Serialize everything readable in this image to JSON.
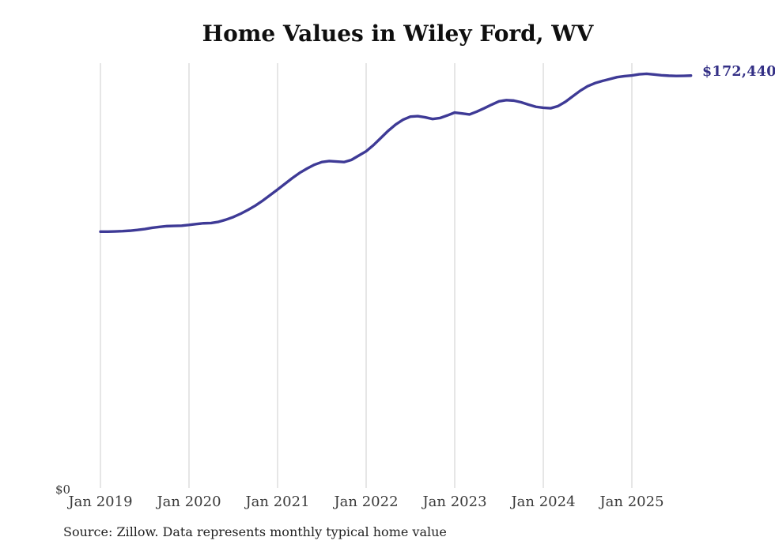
{
  "chart_data": {
    "type": "line",
    "title": "Home Values in Wiley Ford, WV",
    "x_tick_labels": [
      "Jan 2019",
      "Jan 2020",
      "Jan 2021",
      "Jan 2022",
      "Jan 2023",
      "Jan 2024",
      "Jan 2025"
    ],
    "y_tick_labels": [
      "$0"
    ],
    "end_value_label": "$172,440",
    "end_value": 172440,
    "x_start_month": "2019-01",
    "x_interval_months": 1,
    "ylim": [
      0,
      175000
    ],
    "grid": "vertical-yearly",
    "legend": "none",
    "monthly_values": [
      107200,
      107200,
      107300,
      107400,
      107600,
      107900,
      108300,
      108800,
      109200,
      109500,
      109600,
      109700,
      110000,
      110400,
      110700,
      110800,
      111300,
      112200,
      113300,
      114700,
      116300,
      118100,
      120200,
      122500,
      124800,
      127200,
      129600,
      131800,
      133600,
      135200,
      136300,
      136700,
      136500,
      136300,
      137200,
      139000,
      140800,
      143400,
      146400,
      149400,
      152000,
      154000,
      155300,
      155500,
      155000,
      154300,
      154700,
      155800,
      157000,
      156600,
      156200,
      157400,
      158800,
      160300,
      161700,
      162200,
      162000,
      161300,
      160300,
      159400,
      159000,
      158800,
      159700,
      161500,
      163800,
      166100,
      168000,
      169300,
      170200,
      171000,
      171800,
      172200,
      172500,
      173000,
      173200,
      172900,
      172600,
      172400,
      172300,
      172350,
      172440
    ],
    "source": "Source: Zillow. Data represents monthly typical home value",
    "line_color": "#3e3a96",
    "end_label_color": "#343086",
    "grid_color": "#cccccc",
    "axis_label_color": "#3a3a3a",
    "title_color": "#0f0f0f"
  }
}
